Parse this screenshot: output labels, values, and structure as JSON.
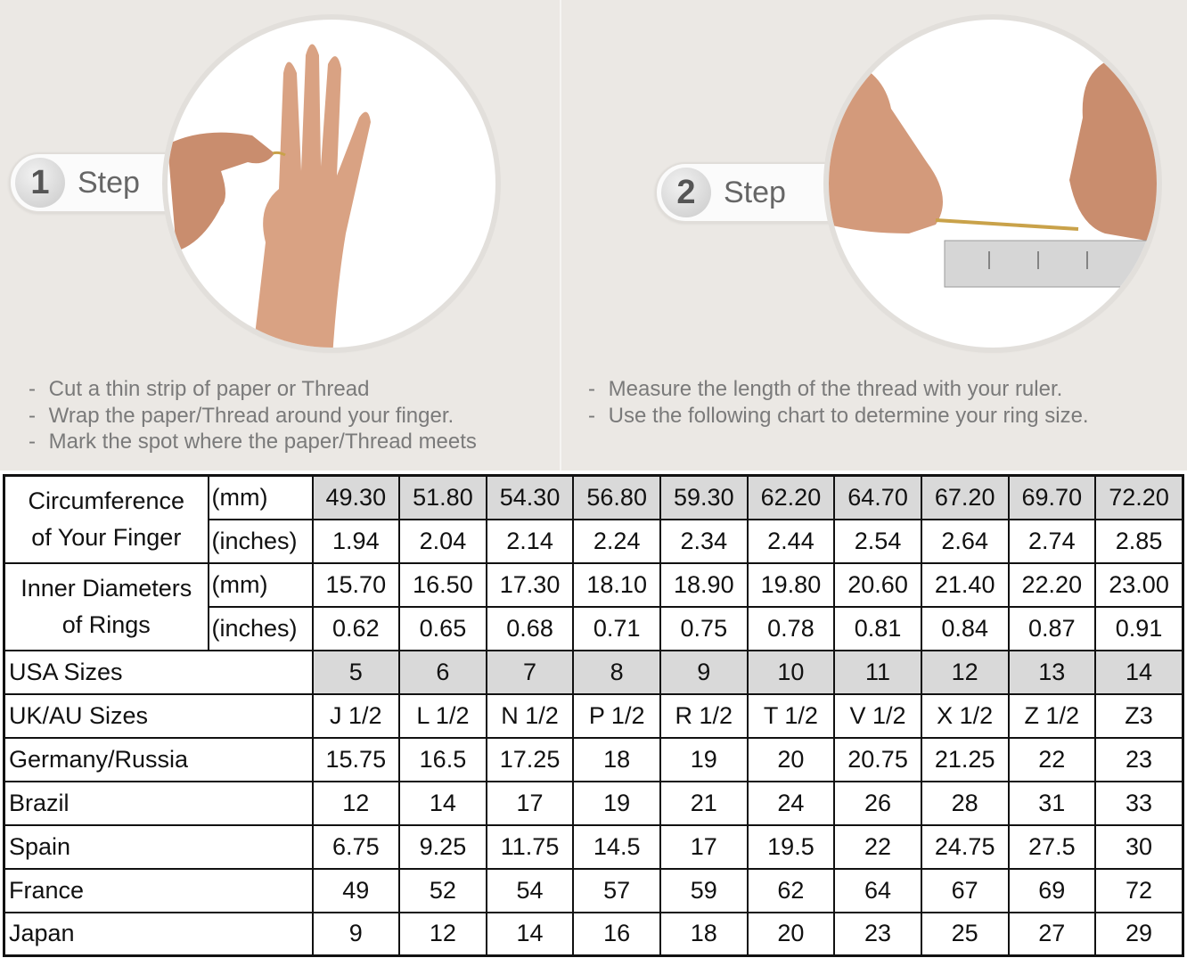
{
  "steps": [
    {
      "number": "1",
      "label": "Step",
      "instructions": [
        "Cut a thin strip of paper or Thread",
        "Wrap the paper/Thread around your finger.",
        "Mark the spot where the paper/Thread meets"
      ]
    },
    {
      "number": "2",
      "label": "Step",
      "instructions": [
        "Measure the length of the thread with your ruler.",
        "Use the following chart to determine your ring size."
      ]
    }
  ],
  "table": {
    "circumference": {
      "label_line1": "Circumference",
      "label_line2": "of Your Finger",
      "mm_unit": "(mm)",
      "in_unit": "(inches)",
      "mm": [
        "49.30",
        "51.80",
        "54.30",
        "56.80",
        "59.30",
        "62.20",
        "64.70",
        "67.20",
        "69.70",
        "72.20"
      ],
      "inches": [
        "1.94",
        "2.04",
        "2.14",
        "2.24",
        "2.34",
        "2.44",
        "2.54",
        "2.64",
        "2.74",
        "2.85"
      ]
    },
    "inner_diameter": {
      "label_line1": "Inner Diameters",
      "label_line2": "of Rings",
      "mm_unit": "(mm)",
      "in_unit": "(inches)",
      "mm": [
        "15.70",
        "16.50",
        "17.30",
        "18.10",
        "18.90",
        "19.80",
        "20.60",
        "21.40",
        "22.20",
        "23.00"
      ],
      "inches": [
        "0.62",
        "0.65",
        "0.68",
        "0.71",
        "0.75",
        "0.78",
        "0.81",
        "0.84",
        "0.87",
        "0.91"
      ]
    },
    "rows": [
      {
        "label": "USA Sizes",
        "values": [
          "5",
          "6",
          "7",
          "8",
          "9",
          "10",
          "11",
          "12",
          "13",
          "14"
        ]
      },
      {
        "label": "UK/AU Sizes",
        "values": [
          "J 1/2",
          "L 1/2",
          "N 1/2",
          "P 1/2",
          "R 1/2",
          "T 1/2",
          "V 1/2",
          "X 1/2",
          "Z 1/2",
          "Z3"
        ]
      },
      {
        "label": "Germany/Russia",
        "values": [
          "15.75",
          "16.5",
          "17.25",
          "18",
          "19",
          "20",
          "20.75",
          "21.25",
          "22",
          "23"
        ]
      },
      {
        "label": "Brazil",
        "values": [
          "12",
          "14",
          "17",
          "19",
          "21",
          "24",
          "26",
          "28",
          "31",
          "33"
        ]
      },
      {
        "label": "Spain",
        "values": [
          "6.75",
          "9.25",
          "11.75",
          "14.5",
          "17",
          "19.5",
          "22",
          "24.75",
          "27.5",
          "30"
        ]
      },
      {
        "label": "France",
        "values": [
          "49",
          "52",
          "54",
          "57",
          "59",
          "62",
          "64",
          "67",
          "69",
          "72"
        ]
      },
      {
        "label": "Japan",
        "values": [
          "9",
          "12",
          "14",
          "16",
          "18",
          "20",
          "23",
          "25",
          "27",
          "29"
        ]
      }
    ],
    "shaded_color": "#d9d9d9"
  }
}
